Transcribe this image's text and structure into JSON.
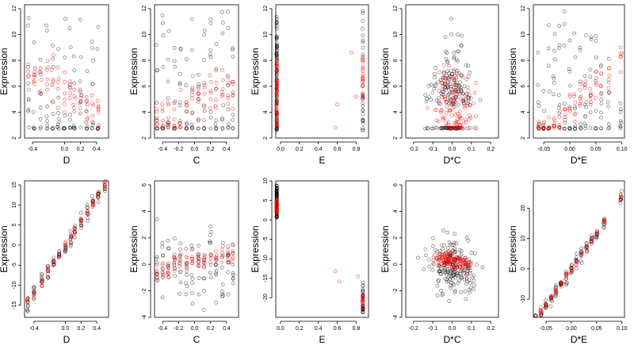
{
  "chart_data": [
    {
      "type": "scatter",
      "xlabel": "D",
      "ylabel": "Expression",
      "xlim": [
        -0.5,
        0.55
      ],
      "ylim": [
        2,
        12.3
      ],
      "xticks": [
        -0.4,
        0.0,
        0.2,
        0.4
      ],
      "yticks": [
        2,
        4,
        6,
        8,
        10,
        12
      ],
      "xtick_labels": [
        "-0.4",
        "0.0",
        "0.2",
        "0.4"
      ],
      "ytick_labels": [
        "2",
        "4",
        "6",
        "8",
        "10",
        "12"
      ],
      "gen": {
        "kind": "grouped",
        "groups": [
          -0.45,
          -0.38,
          -0.3,
          -0.22,
          -0.15,
          -0.08,
          0.0,
          0.07,
          0.12,
          0.2,
          0.28,
          0.35,
          0.42
        ],
        "n": 8,
        "xjit": 0.008,
        "black": {
          "lo": 2.7,
          "hi": 11.5,
          "floor": 2.7,
          "floorFrac": 0.25
        },
        "red": {
          "y0": 5.5,
          "slope": -3.0,
          "spread": 1.3,
          "lo": 2.8,
          "hi": 9.5
        }
      }
    },
    {
      "type": "scatter",
      "xlabel": "C",
      "ylabel": "Expression",
      "xlim": [
        -0.5,
        0.55
      ],
      "ylim": [
        2,
        12.3
      ],
      "xticks": [
        -0.4,
        -0.2,
        0.0,
        0.2,
        0.4
      ],
      "yticks": [
        2,
        4,
        6,
        8,
        10,
        12
      ],
      "xtick_labels": [
        "-0.4",
        "-0.2",
        "0.0",
        "0.2",
        "0.4"
      ],
      "ytick_labels": [
        "2",
        "4",
        "6",
        "8",
        "10",
        "12"
      ],
      "gen": {
        "kind": "grouped",
        "groups": [
          -0.47,
          -0.4,
          -0.33,
          -0.25,
          -0.18,
          -0.1,
          -0.03,
          0.05,
          0.12,
          0.2,
          0.27,
          0.35,
          0.42,
          0.48
        ],
        "n": 8,
        "xjit": 0.006,
        "black": {
          "lo": 2.7,
          "hi": 11.8,
          "floor": 2.7,
          "floorFrac": 0.25
        },
        "red": {
          "y0": 4.8,
          "slope": 3.0,
          "spread": 1.2,
          "lo": 2.8,
          "hi": 9.0
        }
      }
    },
    {
      "type": "scatter",
      "xlabel": "E",
      "ylabel": "Expression",
      "xlim": [
        -0.05,
        0.93
      ],
      "ylim": [
        2,
        12.3
      ],
      "xticks": [
        0.0,
        0.2,
        0.4,
        0.6,
        0.8
      ],
      "yticks": [
        2,
        4,
        6,
        8,
        10,
        12
      ],
      "xtick_labels": [
        "0.0",
        "0.2",
        "0.4",
        "0.6",
        "0.8"
      ],
      "ytick_labels": [
        "2",
        "4",
        "6",
        "8",
        "10",
        "12"
      ],
      "gen": {
        "kind": "e",
        "left": {
          "x": -0.04,
          "n": 90,
          "black": {
            "lo": 2.6,
            "hi": 11.5
          },
          "red": {
            "lo": 2.8,
            "hi": 8.0
          }
        },
        "right": {
          "x": 0.87,
          "n": 28,
          "black": {
            "lo": 2.6,
            "hi": 12.0
          },
          "red": {
            "lo": 5.0,
            "hi": 8.5
          }
        },
        "mid": [
          [
            0.6,
            4.6
          ],
          [
            0.8,
            5.2
          ],
          [
            0.75,
            8.6
          ],
          [
            0.58,
            2.8
          ]
        ]
      }
    },
    {
      "type": "scatter",
      "xlabel": "D*C",
      "ylabel": "Expression",
      "xlim": [
        -0.24,
        0.24
      ],
      "ylim": [
        2,
        12.3
      ],
      "xticks": [
        -0.2,
        -0.1,
        0.0,
        0.1,
        0.2
      ],
      "yticks": [
        2,
        4,
        6,
        8,
        10,
        12
      ],
      "xtick_labels": [
        "-0.2",
        "-0.1",
        "0.0",
        "0.1",
        "0.2"
      ],
      "ytick_labels": [
        "2",
        "4",
        "6",
        "8",
        "10",
        "12"
      ],
      "gen": {
        "kind": "cloud",
        "n": 180,
        "xsd": 0.08,
        "black": {
          "center": 4.5,
          "spread": 3.5,
          "lo": 2.7,
          "hi": 11.8,
          "floor": 2.7,
          "floorFrac": 0.25
        },
        "red": {
          "center": 4.6,
          "spread": 2.2,
          "lo": 2.8,
          "hi": 9.0
        }
      }
    },
    {
      "type": "scatter",
      "xlabel": "D*E",
      "ylabel": "Expression",
      "xlim": [
        -0.07,
        0.105
      ],
      "ylim": [
        2,
        12.3
      ],
      "xticks": [
        -0.05,
        0.0,
        0.05,
        0.1
      ],
      "yticks": [
        2,
        4,
        6,
        8,
        10,
        12
      ],
      "xtick_labels": [
        "-0.05",
        "0.00",
        "0.05",
        "0.10"
      ],
      "ytick_labels": [
        "2",
        "4",
        "6",
        "8",
        "10",
        "12"
      ],
      "gen": {
        "kind": "grouped",
        "groups": [
          -0.06,
          -0.05,
          -0.04,
          -0.03,
          -0.02,
          -0.01,
          0.0,
          0.01,
          0.02,
          0.03,
          0.04,
          0.05,
          0.06,
          0.075,
          0.098
        ],
        "n": 8,
        "xjit": 0.001,
        "black": {
          "lo": 2.7,
          "hi": 11.8,
          "floor": 2.7,
          "floorFrac": 0.25
        },
        "red": {
          "y0": 4.2,
          "slope": 40,
          "spread": 1.0,
          "lo": 2.8,
          "hi": 9.0
        }
      }
    },
    {
      "type": "scatter",
      "xlabel": "D",
      "ylabel": "Expression",
      "xlim": [
        -0.52,
        0.55
      ],
      "ylim": [
        -18,
        16
      ],
      "xticks": [
        -0.4,
        0.0,
        0.2,
        0.4
      ],
      "yticks": [
        -15,
        -10,
        -5,
        0,
        5,
        10,
        15
      ],
      "xtick_labels": [
        "-0.4",
        "0.0",
        "0.2",
        "0.4"
      ],
      "ytick_labels": [
        "-15",
        "-10",
        "-5",
        "0",
        "5",
        "10",
        "15"
      ],
      "gen": {
        "kind": "linear",
        "groups": [
          -0.48,
          -0.4,
          -0.3,
          -0.22,
          -0.15,
          -0.08,
          0.0,
          0.07,
          0.12,
          0.2,
          0.28,
          0.35,
          0.42,
          0.5
        ],
        "n": 8,
        "xjit": 0.006,
        "slope": 30,
        "intercept": 0,
        "bsd": 1.3,
        "rsd": 0.7
      }
    },
    {
      "type": "scatter",
      "xlabel": "C",
      "ylabel": "Expression",
      "xlim": [
        -0.5,
        0.55
      ],
      "ylim": [
        -4,
        6.3
      ],
      "xticks": [
        -0.4,
        -0.2,
        0.0,
        0.2,
        0.4
      ],
      "yticks": [
        -4,
        -2,
        0,
        2,
        4,
        6
      ],
      "xtick_labels": [
        "-0.4",
        "-0.2",
        "0.0",
        "0.2",
        "0.4"
      ],
      "ytick_labels": [
        "-4",
        "-2",
        "0",
        "2",
        "4",
        "6"
      ],
      "gen": {
        "kind": "grouped",
        "groups": [
          -0.47,
          -0.4,
          -0.33,
          -0.25,
          -0.18,
          -0.1,
          -0.03,
          0.05,
          0.12,
          0.2,
          0.27,
          0.35,
          0.42,
          0.48
        ],
        "n": 8,
        "xjit": 0.006,
        "black": {
          "lo": -3.6,
          "hi": 5.8,
          "center": 0,
          "sd": 1.8
        },
        "red": {
          "y0": 0.2,
          "slope": 1.4,
          "spread": 0.55,
          "lo": -1.5,
          "hi": 2.0
        }
      }
    },
    {
      "type": "scatter",
      "xlabel": "E",
      "ylabel": "Expression",
      "xlim": [
        -0.05,
        0.93
      ],
      "ylim": [
        -25,
        10
      ],
      "xticks": [
        0.0,
        0.2,
        0.4,
        0.6,
        0.8
      ],
      "yticks": [
        -20,
        -15,
        -10,
        -5,
        0,
        5,
        10
      ],
      "xtick_labels": [
        "0.0",
        "0.2",
        "0.4",
        "0.6",
        "0.8"
      ],
      "ytick_labels": [
        "-20",
        "-15",
        "-10",
        "-5",
        "0",
        "5",
        "10"
      ],
      "gen": {
        "kind": "e2",
        "left": {
          "x": -0.04,
          "n": 90,
          "blo": 0.5,
          "bhi": 9.0,
          "rlo": 1.5,
          "rhi": 5.0
        },
        "right": {
          "x": 0.87,
          "n": 28,
          "blo": -24.0,
          "bhi": -16.0,
          "rlo": -23.0,
          "rhi": -19.0
        },
        "mid": [
          [
            0.58,
            -13.2
          ],
          [
            0.62,
            -15.8
          ],
          [
            0.82,
            -14.5
          ]
        ]
      }
    },
    {
      "type": "scatter",
      "xlabel": "D*C",
      "ylabel": "Expression",
      "xlim": [
        -0.24,
        0.24
      ],
      "ylim": [
        -4,
        6.3
      ],
      "xticks": [
        -0.2,
        -0.1,
        0.0,
        0.1,
        0.2
      ],
      "yticks": [
        -4,
        -2,
        0,
        2,
        4,
        6
      ],
      "xtick_labels": [
        "-0.2",
        "-0.1",
        "0.0",
        "0.1",
        "0.2"
      ],
      "ytick_labels": [
        "-4",
        "-2",
        "0",
        "2",
        "4",
        "6"
      ],
      "gen": {
        "kind": "dc2",
        "n": 180,
        "xsd": 0.08,
        "bslope": -3.5,
        "bsd": 1.5,
        "rslope": -3.5,
        "rsd": 0.45,
        "rint": 0.3
      }
    },
    {
      "type": "scatter",
      "xlabel": "D*E",
      "ylabel": "Expression",
      "xlim": [
        -0.075,
        0.105
      ],
      "ylim": [
        -16,
        29
      ],
      "xticks": [
        -0.05,
        0.0,
        0.05,
        0.1
      ],
      "yticks": [
        -10,
        0,
        10,
        20
      ],
      "xtick_labels": [
        "-0.05",
        "0.00",
        "0.05",
        "0.10"
      ],
      "ytick_labels": [
        "-10",
        "0",
        "10",
        "20"
      ],
      "gen": {
        "kind": "linear",
        "groups": [
          -0.07,
          -0.06,
          -0.05,
          -0.04,
          -0.03,
          -0.02,
          -0.01,
          0.0,
          0.01,
          0.02,
          0.03,
          0.04,
          0.05,
          0.065,
          0.098
        ],
        "n": 8,
        "xjit": 0.0012,
        "slope": 240,
        "intercept": 0,
        "bsd": 1.5,
        "rsd": 0.8
      }
    }
  ]
}
